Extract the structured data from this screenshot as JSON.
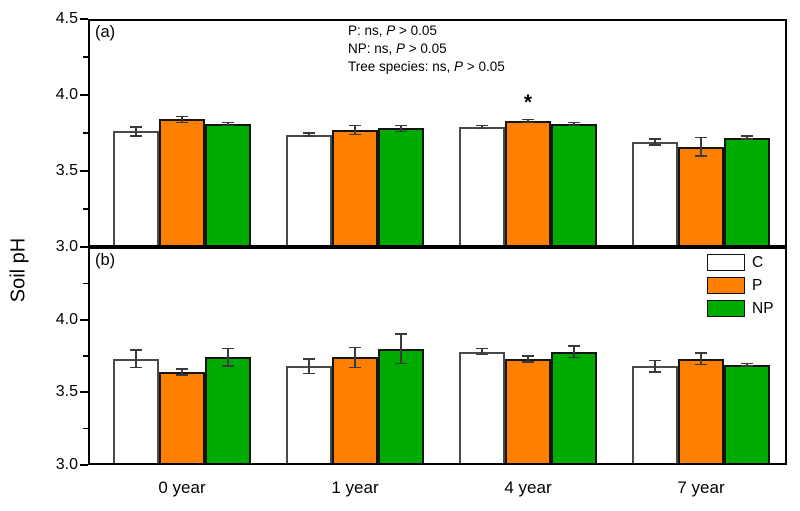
{
  "chart_data": {
    "type": "bar",
    "ylabel": "Soil pH",
    "categories": [
      "0 year",
      "1 year",
      "4 year",
      "7 year"
    ],
    "grid": false,
    "legend_position": "top-right-of-panel-b",
    "error_bars": "symmetric",
    "annotations": [
      {
        "prefix": "P: ns, ",
        "italic": "P",
        "suffix": " > 0.05"
      },
      {
        "prefix": "NP: ns, ",
        "italic": "P",
        "suffix": " > 0.05"
      },
      {
        "prefix": "Tree species: ns, ",
        "italic": "P",
        "suffix": " > 0.05"
      }
    ],
    "panels": [
      {
        "id": "a",
        "label": "(a)",
        "ylim": [
          3.0,
          4.5
        ],
        "yticks_labeled": [
          3.0,
          3.5,
          4.0,
          4.5
        ],
        "yticks_minor": [
          3.25,
          3.75,
          4.25
        ],
        "series": [
          {
            "name": "C",
            "color": "#ffffff",
            "values": [
              3.76,
              3.74,
              3.79,
              3.69
            ],
            "errors": [
              0.03,
              0.01,
              0.01,
              0.02
            ]
          },
          {
            "name": "P",
            "color": "#ff8000",
            "values": [
              3.84,
              3.77,
              3.83,
              3.66
            ],
            "errors": [
              0.02,
              0.03,
              0.01,
              0.06
            ]
          },
          {
            "name": "NP",
            "color": "#00ab00",
            "values": [
              3.81,
              3.78,
              3.81,
              3.72
            ],
            "errors": [
              0.01,
              0.02,
              0.01,
              0.01
            ]
          }
        ],
        "sig_marker": {
          "text": "*",
          "series": "P",
          "category": "4 year"
        }
      },
      {
        "id": "b",
        "label": "(b)",
        "ylim": [
          3.0,
          4.5
        ],
        "yticks_labeled": [
          3.0,
          3.5,
          4.0
        ],
        "yticks_minor": [
          3.25,
          3.75,
          4.25
        ],
        "series": [
          {
            "name": "C",
            "color": "#ffffff",
            "values": [
              3.73,
              3.68,
              3.78,
              3.68
            ],
            "errors": [
              0.06,
              0.05,
              0.02,
              0.04
            ]
          },
          {
            "name": "P",
            "color": "#ff8000",
            "values": [
              3.64,
              3.74,
              3.73,
              3.73
            ],
            "errors": [
              0.02,
              0.07,
              0.02,
              0.04
            ]
          },
          {
            "name": "NP",
            "color": "#00ab00",
            "values": [
              3.74,
              3.8,
              3.78,
              3.69
            ],
            "errors": [
              0.06,
              0.1,
              0.04,
              0.01
            ]
          }
        ],
        "sig_marker": null
      }
    ]
  }
}
